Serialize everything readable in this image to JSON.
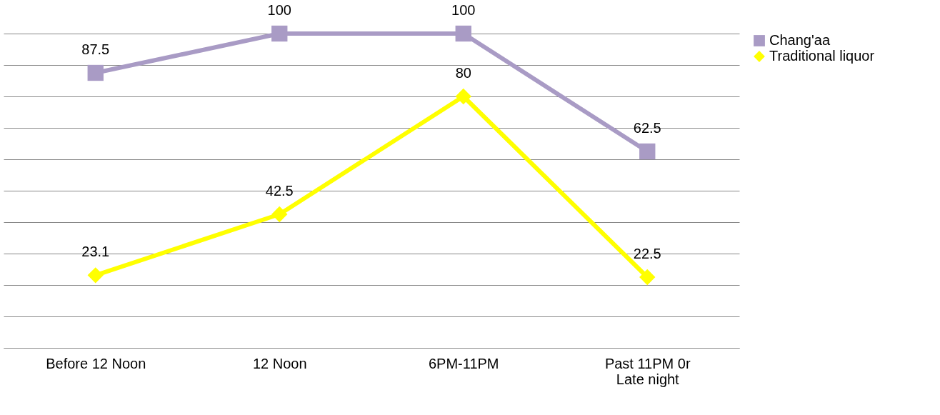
{
  "chart_data": {
    "type": "line",
    "categories": [
      "Before 12 Noon",
      "12 Noon",
      "6PM-11PM",
      "Past 11PM 0r\nLate night"
    ],
    "series": [
      {
        "name": "Chang'aa",
        "color": "#a99bc5",
        "marker": "square",
        "values": [
          87.5,
          100,
          100,
          62.5
        ]
      },
      {
        "name": "Traditional liquor",
        "color": "#ffff00",
        "marker": "diamond",
        "values": [
          23.1,
          42.5,
          80,
          22.5
        ]
      }
    ],
    "data_labels": true,
    "grid": "y",
    "legend": "right",
    "tick_labels": "x"
  }
}
